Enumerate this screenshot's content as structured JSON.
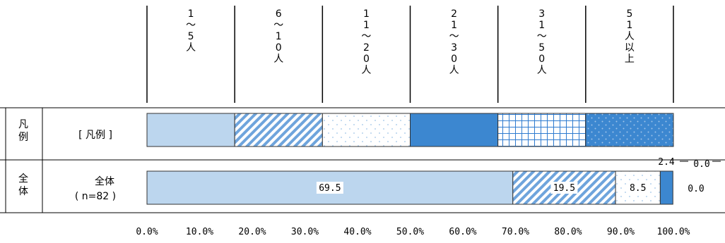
{
  "chart_data": {
    "type": "bar",
    "orientation": "horizontal",
    "stacked": true,
    "legend_header": {
      "categories": [
        "1〜5人",
        "6〜10人",
        "11〜20人",
        "21〜30人",
        "31〜50人",
        "51人以上"
      ],
      "vertical_chars": [
        [
          "1",
          "〜",
          "5",
          "人"
        ],
        [
          "6",
          "〜",
          "1",
          "0",
          "人"
        ],
        [
          "1",
          "1",
          "〜",
          "2",
          "0",
          "人"
        ],
        [
          "2",
          "1",
          "〜",
          "3",
          "0",
          "人"
        ],
        [
          "3",
          "1",
          "〜",
          "5",
          "0",
          "人"
        ],
        [
          "5",
          "1",
          "人",
          "以",
          "上"
        ]
      ]
    },
    "rows": [
      {
        "group_label": [
          "凡",
          "例"
        ],
        "row_label": "[ 凡例 ]",
        "is_legend": true
      },
      {
        "group_label": [
          "全",
          "体"
        ],
        "row_label_line1": "全体",
        "row_label_line2": "( n=82 )",
        "values": [
          69.5,
          19.5,
          8.5,
          2.4,
          0.0,
          0.0
        ],
        "labels": [
          "69.5",
          "19.5",
          "8.5",
          "2.4",
          "0.0",
          "0.0"
        ]
      }
    ],
    "x_axis": {
      "ticks": [
        "0.0%",
        "10.0%",
        "20.0%",
        "30.0%",
        "40.0%",
        "50.0%",
        "60.0%",
        "70.0%",
        "80.0%",
        "90.0%",
        "100.0%"
      ],
      "range": [
        0,
        100
      ]
    },
    "colors": {
      "light_blue": "#bcd6ee",
      "mid_blue": "#5b9bd5",
      "dark_blue": "#3c87d0",
      "stripe_blue": "#6ea4dc",
      "dot_blue": "#9ec4e8",
      "grid_blue": "#2e7bd0"
    }
  }
}
